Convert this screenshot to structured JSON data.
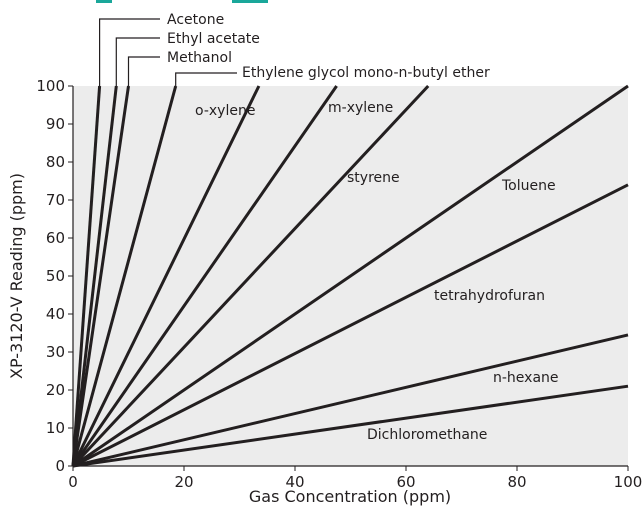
{
  "chart_data": {
    "type": "line",
    "title": "",
    "xlabel": "Gas Concentration (ppm)",
    "ylabel": "XP-3120-V Reading (ppm)",
    "xlim": [
      0,
      100
    ],
    "ylim": [
      0,
      100
    ],
    "x_ticks": [
      0,
      20,
      40,
      60,
      80,
      100
    ],
    "y_ticks": [
      0,
      10,
      20,
      30,
      40,
      50,
      60,
      70,
      80,
      90,
      100
    ],
    "grid": false,
    "legend": "none",
    "colors": {
      "plot_background": "#ececec",
      "line": "#231f20",
      "header_fragment": "#1aa79a"
    },
    "series": [
      {
        "name": "Acetone",
        "x": [
          0,
          4.8
        ],
        "y": [
          0,
          100
        ]
      },
      {
        "name": "Ethyl acetate",
        "x": [
          0,
          7.8
        ],
        "y": [
          0,
          100
        ]
      },
      {
        "name": "Methanol",
        "x": [
          0,
          10
        ],
        "y": [
          0,
          100
        ]
      },
      {
        "name": "Ethylene glycol mono-n-butyl ether",
        "x": [
          0,
          18.5
        ],
        "y": [
          0,
          100
        ]
      },
      {
        "name": "o-xylene",
        "x": [
          0,
          33.5
        ],
        "y": [
          0,
          100
        ]
      },
      {
        "name": "m-xylene",
        "x": [
          0,
          47.5
        ],
        "y": [
          0,
          100
        ]
      },
      {
        "name": "styrene",
        "x": [
          0,
          64
        ],
        "y": [
          0,
          100
        ]
      },
      {
        "name": "Toluene",
        "x": [
          0,
          100
        ],
        "y": [
          0,
          100
        ]
      },
      {
        "name": "tetrahydrofuran",
        "x": [
          0,
          100
        ],
        "y": [
          0,
          74
        ]
      },
      {
        "name": "n-hexane",
        "x": [
          0,
          100
        ],
        "y": [
          0,
          34.5
        ]
      },
      {
        "name": "Dichloromethane",
        "x": [
          0,
          100
        ],
        "y": [
          0,
          21
        ]
      }
    ],
    "labels": {
      "acetone": "Acetone",
      "ethyl_acetate": "Ethyl acetate",
      "methanol": "Methanol",
      "egbe": "Ethylene glycol mono-n-butyl ether",
      "o_xylene": "o-xylene",
      "m_xylene": "m-xylene",
      "styrene": "styrene",
      "toluene": "Toluene",
      "thf": "tetrahydrofuran",
      "hexane": "n-hexane",
      "dcm": "Dichloromethane"
    }
  }
}
